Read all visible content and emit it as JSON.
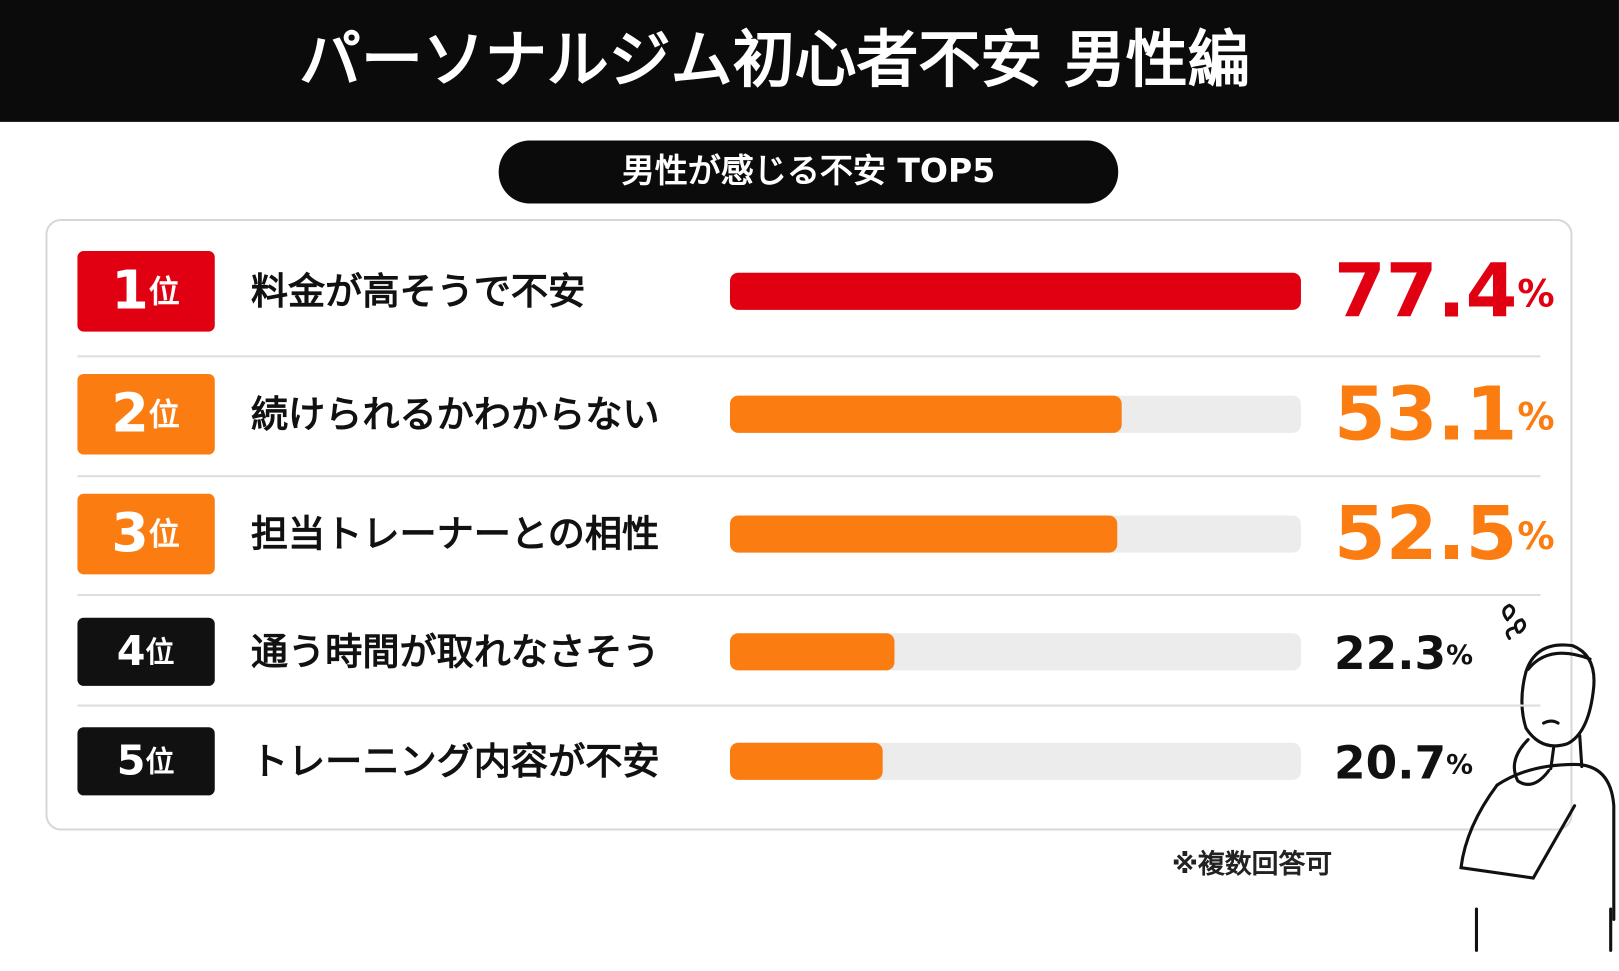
{
  "chart_data": {
    "type": "bar",
    "orientation": "horizontal",
    "title": "パーソナルジム初心者不安 男性編",
    "subtitle": "男性が感じる不安 TOP5",
    "ranks": [
      "1位",
      "2位",
      "3位",
      "4位",
      "5位"
    ],
    "categories": [
      "料金が高そうで不安",
      "続けられるかわからない",
      "担当トレーナーとの相性",
      "通う時間が取れなさそう",
      "トレーニング内容が不安"
    ],
    "values": [
      77.4,
      53.1,
      52.5,
      22.3,
      20.7
    ],
    "value_labels": [
      "77.4%",
      "53.1%",
      "52.5%",
      "22.3%",
      "20.7%"
    ],
    "colors": [
      "#e00012",
      "#fb7d12",
      "#fb7d12",
      "#fb7d12",
      "#fb7d12"
    ],
    "rank_colors": [
      "#e00012",
      "#fb7d12",
      "#fb7d12",
      "#111111",
      "#111111"
    ],
    "xlim": [
      0,
      77.4
    ],
    "note": "※複数回答可"
  }
}
